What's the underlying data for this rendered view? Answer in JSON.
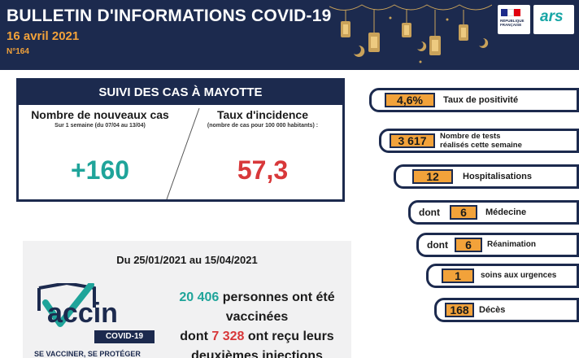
{
  "header": {
    "title": "BULLETIN D'INFORMATIONS COVID-19",
    "date": "16 avril 2021",
    "number": "N°164",
    "logo_rf_text": "RÉPUBLIQUE FRANÇAISE",
    "logo_ars_text": "ars"
  },
  "cases": {
    "heading": "SUIVI DES CAS À MAYOTTE",
    "new_cases_title": "Nombre de nouveaux cas",
    "new_cases_sub": "Sur 1 semaine (du 07/04 au 13/04)",
    "new_cases_value": "+160",
    "incidence_title": "Taux d'incidence",
    "incidence_sub": "(nombre de cas pour 100 000 habitants) :",
    "incidence_value": "57,3"
  },
  "vaccine": {
    "period": "Du 25/01/2021 au 15/04/2021",
    "logo_word": "accin",
    "logo_covid": "COVID-19",
    "logo_slogan": "SE VACCINER, SE PROTÉGER",
    "vaccinated_count": "20 406",
    "vaccinated_text": "personnes ont été vaccinées",
    "second_prefix": "dont",
    "second_count": "7 328",
    "second_text": "ont reçu leurs deuxièmes injections"
  },
  "stats": {
    "positivity": {
      "value": "4,6%",
      "label": "Taux de positivité"
    },
    "tests": {
      "value": "3 617",
      "label_line1": "Nombre de tests",
      "label_line2": "réalisés cette semaine"
    },
    "hospitalisations": {
      "value": "12",
      "label": "Hospitalisations"
    },
    "medecine": {
      "prefix": "dont",
      "value": "6",
      "label": "Médecine"
    },
    "reanimation": {
      "prefix": "dont",
      "value": "6",
      "label": "Réanimation"
    },
    "urgences": {
      "value": "1",
      "label": "soins aux urgences"
    },
    "deces": {
      "value": "168",
      "label": "Décès"
    }
  },
  "colors": {
    "navy": "#1c2a4e",
    "orange": "#f2a23a",
    "green": "#1fa49a",
    "red": "#d8383a"
  }
}
